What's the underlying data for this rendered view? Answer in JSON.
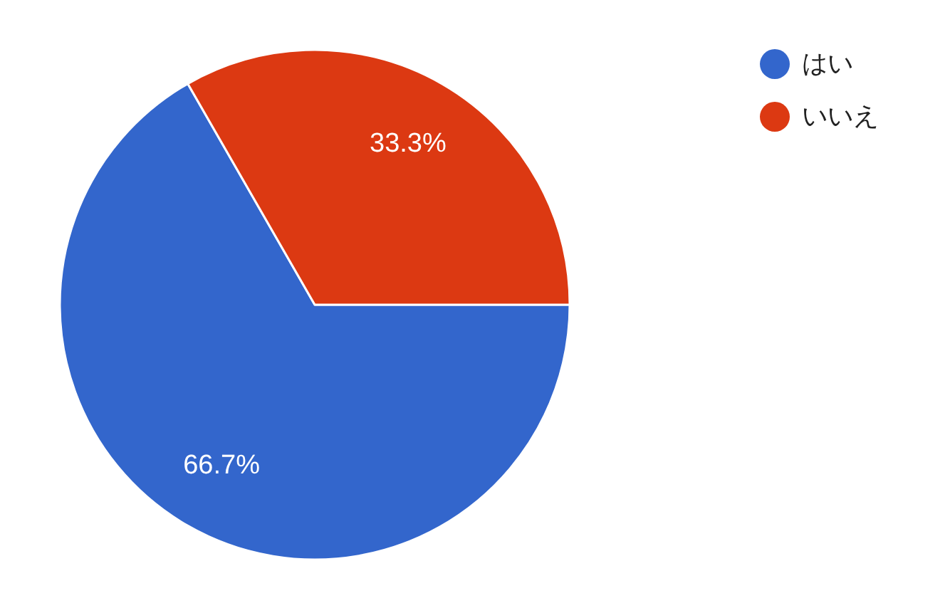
{
  "chart_data": {
    "type": "pie",
    "categories": [
      "はい",
      "いいえ"
    ],
    "values": [
      66.7,
      33.3
    ],
    "colors": [
      "#3366cc",
      "#dc3912"
    ],
    "value_labels": [
      "66.7%",
      "33.3%"
    ],
    "legend": "top right"
  }
}
